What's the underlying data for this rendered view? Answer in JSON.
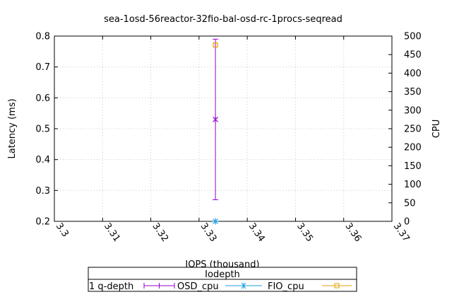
{
  "chart_data": {
    "type": "scatter",
    "title": "sea-1osd-56reactor-32fio-bal-osd-rc-1procs-seqread",
    "xlabel": "IOPS (thousand)",
    "ylabel": "Latency (ms)",
    "y2label": "CPU",
    "xlim": [
      3.3,
      3.37
    ],
    "ylim": [
      0.2,
      0.8
    ],
    "y2lim": [
      0,
      500
    ],
    "xticks": [
      "3.3",
      "3.31",
      "3.32",
      "3.33",
      "3.34",
      "3.35",
      "3.36",
      "3.37"
    ],
    "yticks": [
      "0.2",
      "0.3",
      "0.4",
      "0.5",
      "0.6",
      "0.7",
      "0.8"
    ],
    "y2ticks": [
      "0",
      "50",
      "100",
      "150",
      "200",
      "250",
      "300",
      "350",
      "400",
      "450",
      "500"
    ],
    "grid": true,
    "legend": {
      "title": "Iodepth",
      "placement": "bottom-center",
      "entries": [
        "1 q-depth",
        "OSD_cpu",
        "FIO_cpu"
      ]
    },
    "series": [
      {
        "name": "1 q-depth",
        "axis": "y",
        "marker": "star",
        "color": "#9400D3",
        "points": [
          {
            "x": 3.3334,
            "y": 0.53,
            "ymin": 0.27,
            "ymax": 0.79
          }
        ]
      },
      {
        "name": "OSD_cpu",
        "axis": "y2",
        "marker": "asterisk",
        "color": "#1E9FE0",
        "points": [
          {
            "x": 3.3334,
            "y": 0
          }
        ]
      },
      {
        "name": "FIO_cpu",
        "axis": "y2",
        "marker": "square",
        "color": "#E6A000",
        "points": [
          {
            "x": 3.3334,
            "y": 476
          }
        ]
      }
    ]
  }
}
